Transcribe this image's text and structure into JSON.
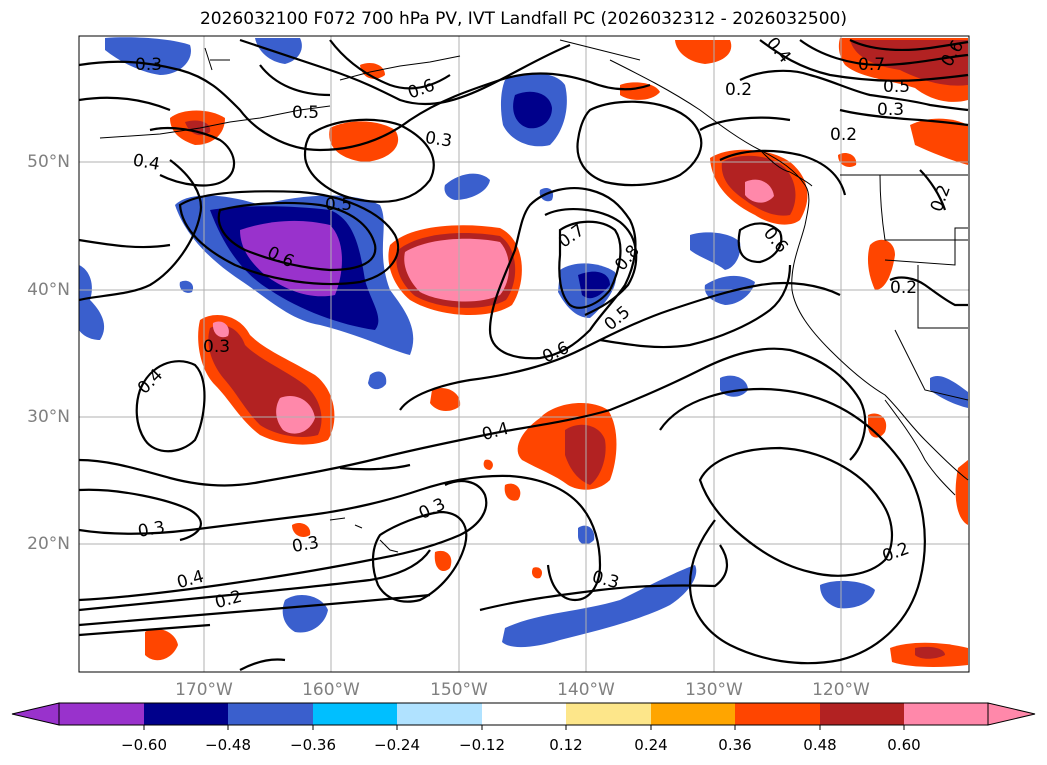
{
  "title": "2026032100 F072 700 hPa PV, IVT Landfall PC (2026032312 - 2026032500)",
  "latitude_labels": [
    "50°N",
    "40°N",
    "30°N",
    "20°N"
  ],
  "longitude_labels": [
    "170°W",
    "160°W",
    "150°W",
    "140°W",
    "130°W",
    "120°W"
  ],
  "colorbar": {
    "ticks": [
      "−0.60",
      "−0.48",
      "−0.36",
      "−0.24",
      "−0.12",
      "0.12",
      "0.24",
      "0.36",
      "0.48",
      "0.60"
    ],
    "colors": [
      "#9932cc",
      "#00008b",
      "#3a5fcd",
      "#00bfff",
      "#b0e2ff",
      "#ffffff",
      "#fde68a",
      "#ffa500",
      "#ff4500",
      "#b22222",
      "#ff88aa"
    ]
  },
  "contour_labels": [
    "0.3",
    "0.6",
    "0.5",
    "0.4",
    "0.3",
    "0.5",
    "0.6",
    "0.7",
    "0.8",
    "0.5",
    "0.6",
    "0.4",
    "0.3",
    "0.4",
    "0.3",
    "0.3",
    "0.3",
    "0.4",
    "0.2",
    "0.2",
    "0.3",
    "0.2",
    "0.6",
    "0.2",
    "0.7",
    "0.5",
    "0.3",
    "0.4",
    "0.2",
    "0.2",
    "0.6"
  ],
  "colors": {
    "coastline": "#000000",
    "grid": "#b0b0b0",
    "tick_label": "#808080"
  }
}
